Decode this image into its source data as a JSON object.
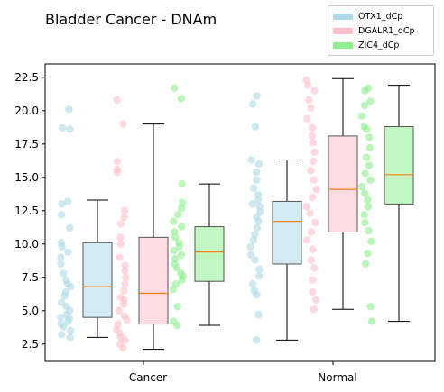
{
  "chart_data": {
    "type": "boxplot",
    "title": "Bladder Cancer - DNAm",
    "categories": [
      "Cancer",
      "Normal"
    ],
    "ylim": [
      1.2,
      23.5
    ],
    "yticks": [
      2.5,
      5.0,
      7.5,
      10.0,
      12.5,
      15.0,
      17.5,
      20.0,
      22.5
    ],
    "ytick_labels": [
      "2.5",
      "5.0",
      "7.5",
      "10.0",
      "12.5",
      "15.0",
      "17.5",
      "20.0",
      "22.5"
    ],
    "legend_position": "top-right",
    "series": [
      {
        "name": "OTX1_dCp",
        "color": "#ADD8E6",
        "boxes": [
          {
            "category": "Cancer",
            "whisker_low": 3.0,
            "q1": 4.5,
            "median": 6.8,
            "q3": 10.1,
            "whisker_high": 13.3
          },
          {
            "category": "Normal",
            "whisker_low": 2.8,
            "q1": 8.5,
            "median": 11.7,
            "q3": 13.2,
            "whisker_high": 16.3
          }
        ],
        "points": [
          {
            "category": "Cancer",
            "values": [
              3.0,
              3.2,
              3.5,
              3.8,
              4.0,
              4.2,
              4.4,
              4.5,
              4.7,
              5.0,
              5.3,
              5.6,
              6.1,
              6.4,
              6.8,
              7.0,
              7.3,
              7.8,
              8.5,
              9.0,
              9.4,
              9.8,
              10.1,
              11.2,
              12.2,
              13.0,
              13.2,
              18.6,
              18.7,
              20.1
            ]
          },
          {
            "category": "Normal",
            "values": [
              2.8,
              4.7,
              6.2,
              6.5,
              7.0,
              7.6,
              8.1,
              8.8,
              9.2,
              9.8,
              10.3,
              10.7,
              11.2,
              11.7,
              12.0,
              12.4,
              12.8,
              13.0,
              13.3,
              13.7,
              14.2,
              14.8,
              15.4,
              16.0,
              16.3,
              18.8,
              20.5,
              21.1
            ]
          }
        ]
      },
      {
        "name": "DGALR1_dCp",
        "color": "#FFC0CB",
        "boxes": [
          {
            "category": "Cancer",
            "whisker_low": 2.1,
            "q1": 4.0,
            "median": 6.3,
            "q3": 10.5,
            "whisker_high": 19.0
          },
          {
            "category": "Normal",
            "whisker_low": 5.1,
            "q1": 10.9,
            "median": 14.1,
            "q3": 18.1,
            "whisker_high": 22.4
          }
        ],
        "points": [
          {
            "category": "Cancer",
            "values": [
              2.2,
              2.5,
              2.8,
              3.0,
              3.3,
              3.6,
              4.0,
              4.3,
              4.6,
              5.0,
              5.5,
              5.8,
              6.0,
              6.5,
              7.0,
              7.5,
              8.0,
              8.4,
              9.0,
              10.0,
              10.5,
              11.5,
              12.0,
              12.5,
              15.4,
              15.6,
              16.2,
              19.0,
              20.8
            ]
          },
          {
            "category": "Normal",
            "values": [
              5.1,
              5.8,
              6.4,
              7.3,
              8.2,
              8.8,
              9.6,
              10.3,
              10.9,
              11.6,
              12.3,
              12.8,
              13.5,
              14.1,
              14.8,
              15.5,
              16.2,
              16.9,
              17.6,
              18.1,
              18.7,
              19.4,
              20.2,
              20.8,
              21.5,
              21.9,
              22.3
            ]
          }
        ]
      },
      {
        "name": "ZIC4_dCp",
        "color": "#90EE90",
        "boxes": [
          {
            "category": "Cancer",
            "whisker_low": 3.9,
            "q1": 7.2,
            "median": 9.4,
            "q3": 11.3,
            "whisker_high": 14.5
          },
          {
            "category": "Normal",
            "whisker_low": 4.2,
            "q1": 13.0,
            "median": 15.2,
            "q3": 18.8,
            "whisker_high": 21.9
          }
        ],
        "points": [
          {
            "category": "Cancer",
            "values": [
              3.9,
              4.2,
              5.3,
              6.6,
              7.0,
              7.3,
              7.6,
              7.8,
              8.2,
              8.5,
              8.9,
              9.2,
              9.5,
              9.8,
              10.1,
              10.5,
              10.9,
              11.3,
              11.7,
              12.2,
              12.7,
              13.1,
              14.5,
              20.9,
              21.7
            ]
          },
          {
            "category": "Normal",
            "values": [
              4.2,
              5.3,
              8.5,
              9.3,
              10.2,
              11.0,
              11.6,
              12.2,
              12.8,
              13.3,
              13.8,
              14.3,
              14.8,
              15.3,
              15.9,
              16.5,
              17.2,
              18.0,
              18.6,
              18.8,
              19.6,
              20.4,
              20.7,
              21.5,
              21.7
            ]
          }
        ]
      }
    ]
  }
}
